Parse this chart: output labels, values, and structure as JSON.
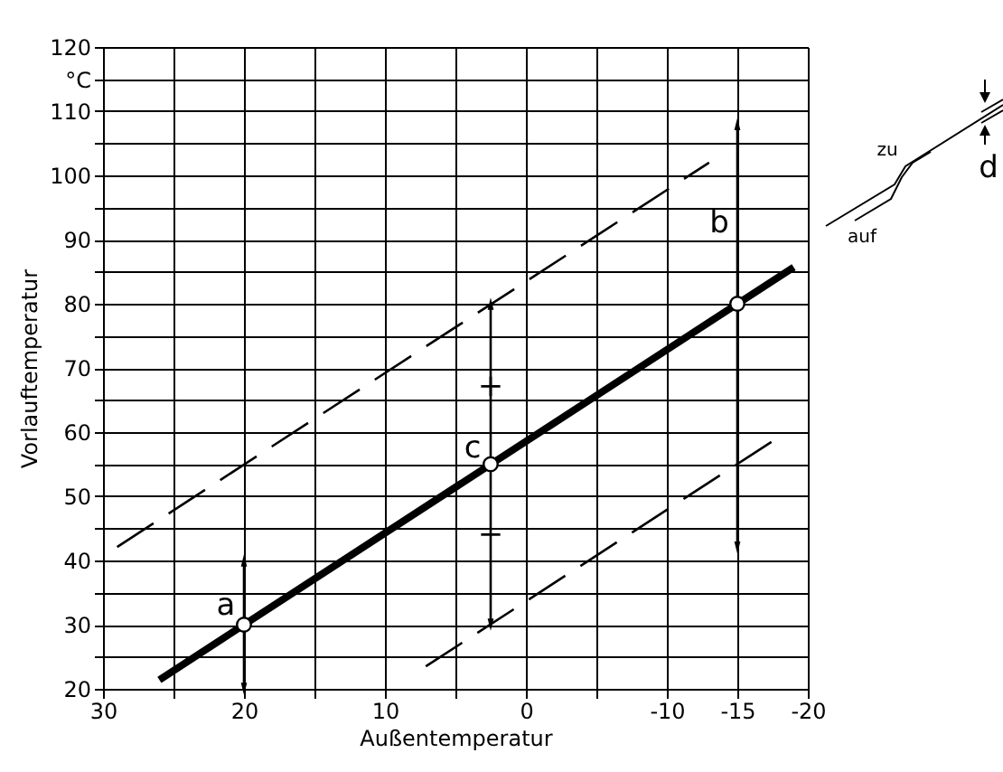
{
  "chart_data": {
    "type": "line",
    "xlabel": "Außentemperatur",
    "ylabel": "Vorlauftemperatur",
    "xlim": [
      30,
      -20
    ],
    "ylim": [
      20,
      120
    ],
    "xticks": [
      30,
      {
        "value": 25,
        "label": null
      },
      20,
      {
        "value": 15,
        "label": null
      },
      10,
      {
        "value": 5,
        "label": null
      },
      0,
      {
        "value": -5,
        "label": null
      },
      -10,
      -15,
      -20
    ],
    "yticks": [
      20,
      {
        "value": 25,
        "label": null
      },
      30,
      {
        "value": 35,
        "label": null
      },
      40,
      {
        "value": 45,
        "label": null
      },
      50,
      {
        "value": 55,
        "label": null
      },
      60,
      {
        "value": 65,
        "label": null
      },
      70,
      {
        "value": 75,
        "label": null
      },
      80,
      {
        "value": 85,
        "label": null
      },
      90,
      {
        "value": 95,
        "label": null
      },
      100,
      {
        "value": 105,
        "label": null
      },
      110,
      {
        "value": 115,
        "label": "°C"
      },
      120
    ],
    "grid": true,
    "series": [
      {
        "color": "#000000",
        "line_style": "solid",
        "x": [
          26,
          -19
        ],
        "values": [
          21.4,
          85.7
        ]
      },
      {
        "color": "#000000",
        "line_style": "dashed",
        "x": [
          29,
          -13
        ],
        "values": [
          42.1,
          102
        ]
      },
      {
        "color": "#000000",
        "line_style": "dashed",
        "x": [
          7.1,
          -18
        ],
        "values": [
          23.5,
          59.3
        ]
      },
      {
        "color": "#000000",
        "line_style": "solid",
        "marker": "triangle",
        "x": [
          20,
          20
        ],
        "values": [
          20,
          40
        ]
      },
      {
        "color": "#000000",
        "line_style": "solid",
        "marker": "triangle",
        "x": [
          2.5,
          2.5
        ],
        "values": [
          30,
          80
        ]
      },
      {
        "color": "#000000",
        "line_style": "solid",
        "marker": "triangle",
        "x": [
          -15,
          -15
        ],
        "values": [
          42,
          108
        ]
      },
      {
        "type": "scatter",
        "color": "#ffffff",
        "marker": "circle",
        "x": [
          20,
          2.5,
          -15
        ],
        "values": [
          30,
          55,
          80
        ]
      }
    ],
    "annotations": [
      {
        "text": "a",
        "x": 20,
        "y": 33
      },
      {
        "text": "b",
        "x": -15,
        "y": 92.5
      },
      {
        "text": "c",
        "x": 2.5,
        "y": 57.5
      },
      {
        "text": "+",
        "x": 2.5,
        "y": 67
      },
      {
        "text": "−",
        "x": 2.5,
        "y": 44
      },
      "zu",
      "auf",
      "d"
    ]
  }
}
